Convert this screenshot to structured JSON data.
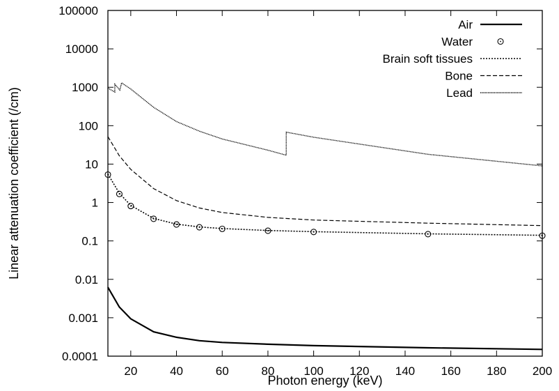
{
  "chart_data": {
    "type": "line",
    "title": "",
    "xlabel": "Photon energy (keV)",
    "ylabel": "Linear attenuation coefficient (/cm)",
    "xlim": [
      10,
      200
    ],
    "ylim": [
      0.0001,
      100000
    ],
    "yscale": "log",
    "grid": false,
    "legend_position": "top-right",
    "x_ticks": [
      20,
      40,
      60,
      80,
      100,
      120,
      140,
      160,
      180,
      200
    ],
    "x_tick_labels": [
      "20",
      "40",
      "60",
      "80",
      "100",
      "120",
      "140",
      "160",
      "180",
      "200"
    ],
    "y_ticks": [
      0.0001,
      0.001,
      0.01,
      0.1,
      1,
      10,
      100,
      1000,
      10000,
      100000
    ],
    "y_tick_labels": [
      "0.0001",
      "0.001",
      "0.01",
      "0.1",
      "1",
      "10",
      "100",
      "1000",
      "10000",
      "100000"
    ],
    "series": [
      {
        "name": "Air",
        "style": "solid",
        "x": [
          10,
          15,
          20,
          30,
          40,
          50,
          60,
          80,
          100,
          150,
          200
        ],
        "y": [
          0.0062,
          0.0019,
          0.00094,
          0.00043,
          0.00031,
          0.000253,
          0.000228,
          0.000204,
          0.000188,
          0.000165,
          0.00015
        ]
      },
      {
        "name": "Water",
        "style": "markers",
        "x": [
          10,
          15,
          20,
          30,
          40,
          50,
          60,
          80,
          100,
          150,
          200
        ],
        "y": [
          5.33,
          1.67,
          0.81,
          0.376,
          0.268,
          0.227,
          0.206,
          0.184,
          0.171,
          0.15,
          0.137
        ]
      },
      {
        "name": "Brain soft tissues",
        "style": "dotted",
        "x": [
          10,
          15,
          20,
          30,
          40,
          50,
          60,
          80,
          100,
          150,
          200
        ],
        "y": [
          5.5,
          1.75,
          0.84,
          0.385,
          0.273,
          0.231,
          0.21,
          0.187,
          0.174,
          0.153,
          0.14
        ]
      },
      {
        "name": "Bone",
        "style": "dashed",
        "x": [
          10,
          15,
          20,
          30,
          40,
          50,
          60,
          80,
          100,
          150,
          200
        ],
        "y": [
          52,
          16.5,
          7.3,
          2.3,
          1.12,
          0.72,
          0.55,
          0.41,
          0.35,
          0.29,
          0.25
        ]
      },
      {
        "name": "Lead",
        "style": "dense-dotted",
        "x": [
          10,
          13.0,
          13.04,
          15.2,
          15.86,
          16.0,
          20,
          30,
          40,
          50,
          60,
          80,
          88.0,
          88.01,
          100,
          150,
          200
        ],
        "y": [
          950,
          750,
          1200,
          850,
          1200,
          1300,
          900,
          300,
          128,
          72,
          45,
          23,
          17,
          68,
          50,
          18,
          9
        ]
      }
    ]
  }
}
